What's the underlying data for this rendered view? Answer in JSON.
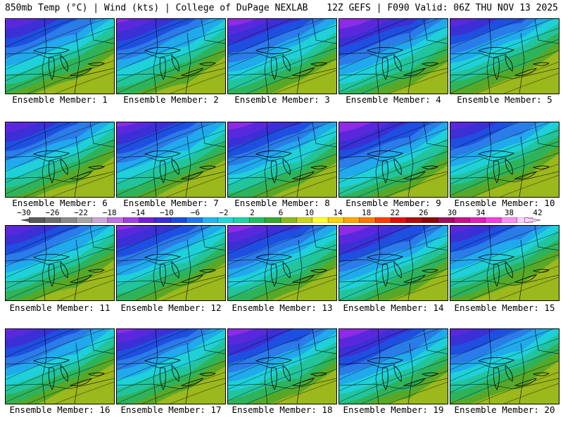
{
  "header": {
    "left": "850mb Temp (°C) | Wind (kts) | College of DuPage NEXLAB",
    "right": "12Z GEFS | F090 Valid: 06Z THU NOV 13 2025"
  },
  "panels": [
    {
      "label": "Ensemble Member: 1"
    },
    {
      "label": "Ensemble Member: 2"
    },
    {
      "label": "Ensemble Member: 3"
    },
    {
      "label": "Ensemble Member: 4"
    },
    {
      "label": "Ensemble Member: 5"
    },
    {
      "label": "Ensemble Member: 6"
    },
    {
      "label": "Ensemble Member: 7"
    },
    {
      "label": "Ensemble Member: 8"
    },
    {
      "label": "Ensemble Member: 9"
    },
    {
      "label": "Ensemble Member: 10"
    },
    {
      "label": "Ensemble Member: 11"
    },
    {
      "label": "Ensemble Member: 12"
    },
    {
      "label": "Ensemble Member: 13"
    },
    {
      "label": "Ensemble Member: 14"
    },
    {
      "label": "Ensemble Member: 15"
    },
    {
      "label": "Ensemble Member: 16"
    },
    {
      "label": "Ensemble Member: 17"
    },
    {
      "label": "Ensemble Member: 18"
    },
    {
      "label": "Ensemble Member: 19"
    },
    {
      "label": "Ensemble Member: 20"
    }
  ],
  "colorbar": {
    "ticks": [
      "−30",
      "−26",
      "−22",
      "−18",
      "−14",
      "−10",
      "−6",
      "−2",
      "2",
      "6",
      "10",
      "14",
      "18",
      "22",
      "26",
      "30",
      "34",
      "38",
      "42"
    ],
    "colors": [
      "#5a5a5a",
      "#6e6e6e",
      "#8a8a8a",
      "#a6a6a6",
      "#c8a8d8",
      "#c070e0",
      "#a040e0",
      "#7020d0",
      "#3b2fd6",
      "#1b4be0",
      "#1f79ea",
      "#22b6f0",
      "#1fd9d9",
      "#1dd3a6",
      "#1dbf62",
      "#35a82d",
      "#8ab91c",
      "#c8d41e",
      "#ffff30",
      "#ffd200",
      "#ffa500",
      "#ff7800",
      "#ff3c00",
      "#e01010",
      "#b00c0c",
      "#8a0a0a",
      "#a0105a",
      "#c8108c",
      "#e020b8",
      "#f040e0",
      "#f890f0",
      "#ffd0ff"
    ]
  },
  "map_colors": [
    "#f0f",
    "#c03ff0",
    "#8e2be6",
    "#5a28dc",
    "#3b2fd6",
    "#1f4fe0",
    "#2a7ce8",
    "#20a9ec",
    "#1fd0d8",
    "#22c49c",
    "#2fb35a",
    "#58a828",
    "#9bb81c"
  ]
}
